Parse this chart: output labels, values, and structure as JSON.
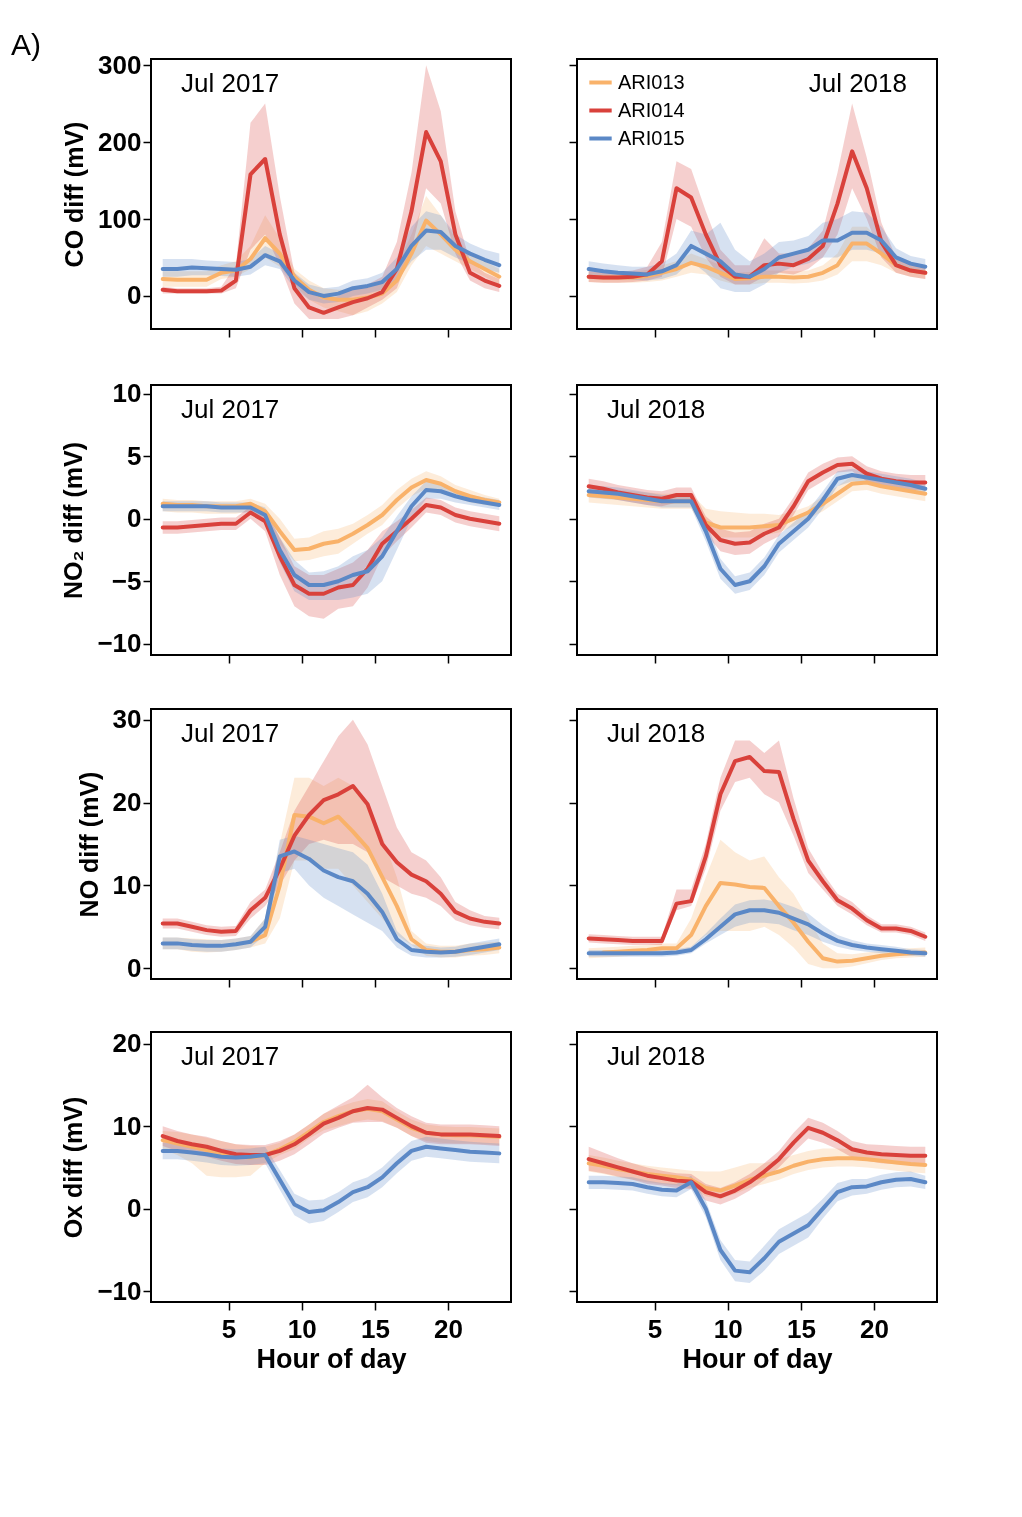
{
  "chart_data": [
    {
      "type": "line",
      "title": "A)",
      "annotations": [
        "Jul 2017"
      ],
      "ylabel": "CO diff (mV)",
      "xlim": [
        -0.3,
        24.3
      ],
      "xticks": [
        5,
        10,
        15,
        20
      ],
      "ylim": [
        -43,
        308
      ],
      "yticks": [
        0,
        100,
        200,
        300
      ],
      "tick_labels": "y",
      "legend": false,
      "x": [
        0.5,
        1.5,
        2.5,
        3.5,
        4.5,
        5.5,
        6.5,
        7.5,
        8.5,
        9.5,
        10.5,
        11.5,
        12.5,
        13.5,
        14.5,
        15.5,
        16.5,
        17.5,
        18.5,
        19.5,
        20.5,
        21.5,
        22.5,
        23.5
      ],
      "series": [
        {
          "color": "#f9b26a",
          "values": [
            22,
            21,
            21,
            21,
            30,
            33,
            48,
            75,
            55,
            25,
            8,
            -2,
            -5,
            -5,
            -2,
            3,
            20,
            55,
            98,
            80,
            60,
            45,
            35,
            25
          ],
          "lower": [
            12,
            12,
            12,
            12,
            22,
            25,
            35,
            50,
            38,
            15,
            -5,
            -15,
            -20,
            -25,
            -20,
            -10,
            5,
            40,
            65,
            55,
            45,
            35,
            25,
            15
          ],
          "upper": [
            32,
            32,
            32,
            32,
            40,
            45,
            65,
            105,
            75,
            35,
            20,
            10,
            8,
            8,
            12,
            18,
            40,
            80,
            130,
            105,
            75,
            55,
            45,
            35
          ]
        },
        {
          "color": "#d9413b",
          "values": [
            8,
            6,
            6,
            6,
            7,
            20,
            158,
            178,
            80,
            10,
            -15,
            -22,
            -15,
            -8,
            -3,
            5,
            35,
            110,
            213,
            175,
            80,
            30,
            20,
            13
          ],
          "lower": [
            3,
            3,
            3,
            3,
            3,
            10,
            60,
            80,
            40,
            -10,
            -30,
            -30,
            -30,
            -25,
            -15,
            -5,
            10,
            60,
            140,
            120,
            55,
            20,
            10,
            5
          ],
          "upper": [
            12,
            10,
            10,
            10,
            12,
            40,
            225,
            250,
            130,
            30,
            5,
            -5,
            0,
            10,
            15,
            25,
            70,
            160,
            300,
            240,
            110,
            45,
            30,
            22
          ]
        },
        {
          "color": "#5b88c6",
          "values": [
            35,
            35,
            37,
            36,
            35,
            34,
            38,
            53,
            45,
            20,
            5,
            0,
            3,
            10,
            13,
            18,
            35,
            65,
            85,
            83,
            65,
            55,
            47,
            40
          ],
          "lower": [
            25,
            25,
            27,
            27,
            26,
            25,
            28,
            40,
            35,
            10,
            -5,
            -10,
            -8,
            0,
            3,
            8,
            20,
            45,
            60,
            60,
            50,
            42,
            35,
            30
          ],
          "upper": [
            48,
            48,
            48,
            46,
            45,
            44,
            48,
            65,
            55,
            30,
            15,
            10,
            12,
            20,
            23,
            30,
            50,
            90,
            110,
            105,
            80,
            68,
            60,
            55
          ]
        }
      ]
    },
    {
      "type": "line",
      "annotations": [
        "Jul 2018"
      ],
      "xlim": [
        -0.3,
        24.3
      ],
      "xticks": [
        5,
        10,
        15,
        20
      ],
      "ylim": [
        -43,
        308
      ],
      "yticks": [
        0,
        100,
        200,
        300
      ],
      "tick_labels": false,
      "legend": "top left",
      "x": [
        0.5,
        1.5,
        2.5,
        3.5,
        4.5,
        5.5,
        6.5,
        7.5,
        8.5,
        9.5,
        10.5,
        11.5,
        12.5,
        13.5,
        14.5,
        15.5,
        16.5,
        17.5,
        18.5,
        19.5,
        20.5,
        21.5,
        22.5,
        23.5
      ],
      "series": [
        {
          "name": "ARI013",
          "color": "#f9b26a",
          "values": [
            25,
            24,
            24,
            24,
            26,
            30,
            35,
            43,
            38,
            30,
            22,
            23,
            25,
            25,
            24,
            25,
            30,
            40,
            68,
            68,
            55,
            40,
            33,
            30
          ],
          "lower": [
            18,
            17,
            17,
            17,
            18,
            20,
            25,
            30,
            28,
            20,
            15,
            15,
            17,
            17,
            16,
            17,
            20,
            28,
            45,
            45,
            40,
            30,
            25,
            22
          ],
          "upper": [
            32,
            31,
            31,
            31,
            34,
            40,
            45,
            55,
            48,
            40,
            30,
            31,
            33,
            33,
            32,
            33,
            40,
            55,
            90,
            90,
            70,
            50,
            41,
            38
          ]
        },
        {
          "name": "ARI014",
          "color": "#d9413b",
          "values": [
            25,
            24,
            24,
            25,
            28,
            45,
            140,
            128,
            80,
            40,
            25,
            25,
            40,
            42,
            40,
            48,
            65,
            120,
            188,
            140,
            70,
            40,
            33,
            30
          ],
          "lower": [
            18,
            17,
            17,
            18,
            20,
            25,
            100,
            90,
            50,
            25,
            15,
            15,
            25,
            30,
            28,
            35,
            50,
            80,
            140,
            100,
            50,
            30,
            25,
            22
          ],
          "upper": [
            32,
            31,
            31,
            33,
            38,
            70,
            175,
            165,
            110,
            60,
            40,
            40,
            75,
            55,
            55,
            62,
            85,
            160,
            250,
            180,
            95,
            50,
            42,
            38
          ]
        },
        {
          "name": "ARI015",
          "color": "#5b88c6",
          "values": [
            35,
            32,
            30,
            29,
            28,
            32,
            40,
            65,
            55,
            45,
            28,
            25,
            35,
            50,
            55,
            60,
            72,
            72,
            82,
            82,
            72,
            50,
            42,
            38
          ],
          "lower": [
            25,
            23,
            22,
            21,
            20,
            22,
            28,
            45,
            30,
            10,
            5,
            5,
            15,
            30,
            38,
            42,
            50,
            50,
            60,
            60,
            55,
            38,
            32,
            30
          ],
          "upper": [
            45,
            42,
            40,
            38,
            38,
            42,
            55,
            85,
            80,
            95,
            60,
            45,
            55,
            70,
            72,
            78,
            95,
            100,
            110,
            108,
            90,
            62,
            52,
            48
          ]
        }
      ]
    },
    {
      "type": "line",
      "annotations": [
        "Jul 2017"
      ],
      "ylabel": "NO₂ diff (mV)",
      "xlim": [
        -0.3,
        24.3
      ],
      "xticks": [
        5,
        10,
        15,
        20
      ],
      "ylim": [
        -10.9,
        10.7
      ],
      "yticks": [
        -10,
        -5,
        0,
        5,
        10
      ],
      "tick_labels": "y",
      "legend": false,
      "x": [
        0.5,
        1.5,
        2.5,
        3.5,
        4.5,
        5.5,
        6.5,
        7.5,
        8.5,
        9.5,
        10.5,
        11.5,
        12.5,
        13.5,
        14.5,
        15.5,
        16.5,
        17.5,
        18.5,
        19.5,
        20.5,
        21.5,
        22.5,
        23.5
      ],
      "series": [
        {
          "color": "#f9b26a",
          "values": [
            1.2,
            1.1,
            1.1,
            1.0,
            1.0,
            1.0,
            1.2,
            0.6,
            -1.0,
            -2.5,
            -2.4,
            -2.0,
            -1.8,
            -1.2,
            -0.5,
            0.3,
            1.5,
            2.5,
            3.1,
            2.8,
            2.2,
            1.8,
            1.5,
            1.3
          ],
          "lower": [
            0.6,
            0.5,
            0.5,
            0.4,
            0.4,
            0.4,
            0.6,
            0,
            -2,
            -3.4,
            -3.3,
            -3,
            -2.8,
            -2,
            -1.2,
            -0.5,
            0.8,
            1.8,
            2.4,
            2.2,
            1.7,
            1.3,
            1.1,
            1.0
          ],
          "upper": [
            1.6,
            1.5,
            1.5,
            1.4,
            1.4,
            1.4,
            1.6,
            1.2,
            0,
            -1.6,
            -1.5,
            -1,
            -0.8,
            -0.4,
            0.3,
            1.1,
            2.3,
            3.2,
            3.8,
            3.4,
            2.7,
            2.3,
            1.9,
            1.6
          ]
        },
        {
          "color": "#d9413b",
          "values": [
            -0.7,
            -0.7,
            -0.6,
            -0.5,
            -0.4,
            -0.4,
            0.5,
            -0.2,
            -3.0,
            -5.3,
            -6.0,
            -6.0,
            -5.5,
            -5.3,
            -4.0,
            -2.0,
            -1.0,
            0.0,
            1.1,
            0.9,
            0.3,
            0,
            -0.2,
            -0.4
          ],
          "lower": [
            -1.2,
            -1.2,
            -1.1,
            -1.0,
            -0.9,
            -0.9,
            0,
            -1,
            -4.5,
            -7,
            -7.8,
            -8,
            -7.2,
            -7.0,
            -5.5,
            -3,
            -1.8,
            -0.7,
            0.5,
            0.3,
            -0.3,
            -0.6,
            -0.8,
            -1.0
          ],
          "upper": [
            -0.2,
            -0.2,
            -0.1,
            0,
            0.1,
            0.1,
            1,
            0.6,
            -1.5,
            -3.8,
            -4.5,
            -4.5,
            -4,
            -3.5,
            -2.5,
            -1,
            -0.2,
            0.7,
            1.7,
            1.5,
            0.9,
            0.6,
            0.4,
            0.2
          ]
        },
        {
          "color": "#5b88c6",
          "values": [
            1.0,
            1.0,
            1.0,
            1.0,
            0.9,
            0.9,
            0.9,
            0.3,
            -2.5,
            -4.5,
            -5.3,
            -5.3,
            -5.0,
            -4.5,
            -4.2,
            -3.0,
            -1.0,
            1.0,
            2.3,
            2.2,
            1.8,
            1.5,
            1.3,
            1.1
          ],
          "lower": [
            0.6,
            0.6,
            0.6,
            0.6,
            0.5,
            0.5,
            0.5,
            -0.3,
            -3.5,
            -5.8,
            -6.5,
            -6.5,
            -6.5,
            -6.3,
            -6.0,
            -5.0,
            -2.5,
            0,
            1.6,
            1.6,
            1.3,
            1.1,
            0.9,
            0.7
          ],
          "upper": [
            1.4,
            1.4,
            1.4,
            1.4,
            1.3,
            1.3,
            1.3,
            0.9,
            -1.5,
            -3.3,
            -4.3,
            -4.2,
            -3.8,
            -3.0,
            -2.5,
            -1.5,
            0.2,
            1.8,
            3.0,
            2.8,
            2.3,
            1.9,
            1.7,
            1.5
          ]
        }
      ]
    },
    {
      "type": "line",
      "annotations": [
        "Jul 2018"
      ],
      "xlim": [
        -0.3,
        24.3
      ],
      "xticks": [
        5,
        10,
        15,
        20
      ],
      "ylim": [
        -10.9,
        10.7
      ],
      "yticks": [
        -10,
        -5,
        0,
        5,
        10
      ],
      "tick_labels": false,
      "legend": false,
      "x": [
        0.5,
        1.5,
        2.5,
        3.5,
        4.5,
        5.5,
        6.5,
        7.5,
        8.5,
        9.5,
        10.5,
        11.5,
        12.5,
        13.5,
        14.5,
        15.5,
        16.5,
        17.5,
        18.5,
        19.5,
        20.5,
        21.5,
        22.5,
        23.5
      ],
      "series": [
        {
          "color": "#f9b26a",
          "values": [
            1.9,
            1.8,
            1.7,
            1.6,
            1.5,
            1.4,
            1.4,
            1.4,
            -0.3,
            -0.7,
            -0.7,
            -0.7,
            -0.6,
            -0.5,
            0.0,
            0.5,
            1.2,
            2.0,
            2.8,
            2.9,
            2.6,
            2.4,
            2.2,
            2.0
          ],
          "lower": [
            1.3,
            1.2,
            1.1,
            1.0,
            0.9,
            0.8,
            0.8,
            0.8,
            -1.0,
            -1.5,
            -1.5,
            -1.5,
            -1.3,
            -1.1,
            -0.6,
            0,
            0.6,
            1.4,
            2.2,
            2.3,
            2.0,
            1.8,
            1.6,
            1.4
          ],
          "upper": [
            2.5,
            2.4,
            2.3,
            2.2,
            2.1,
            2.0,
            2.0,
            2.0,
            0.8,
            0.6,
            0.5,
            0.4,
            0.4,
            0.3,
            0.6,
            1.0,
            1.8,
            2.6,
            3.4,
            3.5,
            3.2,
            3.0,
            2.8,
            2.6
          ]
        },
        {
          "color": "#d9413b",
          "values": [
            2.6,
            2.4,
            2.1,
            1.9,
            1.7,
            1.6,
            1.9,
            1.9,
            -0.5,
            -1.7,
            -2.0,
            -1.9,
            -1.2,
            -0.7,
            1.0,
            3.0,
            3.7,
            4.3,
            4.4,
            3.6,
            3.2,
            3.0,
            2.9,
            2.9
          ],
          "lower": [
            2.0,
            1.8,
            1.5,
            1.3,
            1.1,
            1.0,
            1.3,
            1.3,
            -1.2,
            -2.6,
            -2.9,
            -2.8,
            -2.0,
            -1.4,
            0.3,
            2.3,
            3.0,
            3.7,
            3.8,
            3.0,
            2.6,
            2.4,
            2.3,
            2.3
          ],
          "upper": [
            3.2,
            3.0,
            2.7,
            2.5,
            2.3,
            2.2,
            2.5,
            2.5,
            0.2,
            -0.8,
            -1.1,
            -1.0,
            -0.4,
            0,
            1.7,
            3.7,
            4.4,
            4.9,
            5.0,
            4.2,
            3.8,
            3.6,
            3.5,
            3.5
          ]
        },
        {
          "color": "#5b88c6",
          "values": [
            2.2,
            2.1,
            2.0,
            1.8,
            1.6,
            1.4,
            1.4,
            1.4,
            -1.0,
            -4.0,
            -5.3,
            -5.0,
            -3.8,
            -2.0,
            -1.0,
            0.0,
            1.5,
            3.2,
            3.5,
            3.3,
            3.1,
            2.9,
            2.7,
            2.4
          ],
          "lower": [
            1.7,
            1.6,
            1.5,
            1.3,
            1.1,
            0.9,
            0.9,
            0.9,
            -1.8,
            -4.8,
            -6.0,
            -5.7,
            -4.5,
            -2.7,
            -1.7,
            -0.7,
            0.8,
            2.6,
            3.0,
            2.8,
            2.6,
            2.4,
            2.2,
            1.9
          ],
          "upper": [
            2.7,
            2.6,
            2.5,
            2.3,
            2.1,
            1.9,
            1.9,
            1.9,
            -0.2,
            -3.2,
            -4.6,
            -4.3,
            -3.1,
            -1.3,
            -0.3,
            0.7,
            2.2,
            3.8,
            4.0,
            3.8,
            3.6,
            3.4,
            3.2,
            2.9
          ]
        }
      ]
    },
    {
      "type": "line",
      "annotations": [
        "Jul 2017"
      ],
      "ylabel": "NO diff (mV)",
      "xlim": [
        -0.3,
        24.3
      ],
      "xticks": [
        5,
        10,
        15,
        20
      ],
      "ylim": [
        -1.3,
        31.3
      ],
      "yticks": [
        0,
        10,
        20,
        30
      ],
      "tick_labels": "y",
      "legend": false,
      "x": [
        0.5,
        1.5,
        2.5,
        3.5,
        4.5,
        5.5,
        6.5,
        7.5,
        8.5,
        9.5,
        10.5,
        11.5,
        12.5,
        13.5,
        14.5,
        15.5,
        16.5,
        17.5,
        18.5,
        19.5,
        20.5,
        21.5,
        22.5,
        23.5
      ],
      "series": [
        {
          "color": "#f9b26a",
          "values": [
            null,
            null,
            null,
            null,
            null,
            null,
            3.2,
            4.0,
            10,
            18.5,
            18.3,
            17.5,
            18.3,
            16.5,
            14.5,
            11,
            7.5,
            3.5,
            2.2,
            2.0,
            2.0,
            2.2,
            2.3,
            2.5
          ],
          "lower": [
            2.3,
            2.3,
            2.0,
            1.9,
            2.0,
            2.2,
            2.5,
            3,
            6,
            13,
            13,
            12,
            12,
            10,
            8,
            6,
            4,
            2.8,
            1.5,
            1.3,
            1.3,
            1.5,
            1.6,
            1.8
          ],
          "upper": [
            3.7,
            3.7,
            3.6,
            3.5,
            3.4,
            3.6,
            3.9,
            6,
            15,
            23,
            23,
            22,
            23,
            22,
            20,
            16,
            11,
            4.5,
            3,
            2.7,
            2.7,
            3,
            3.1,
            3.2
          ]
        },
        {
          "color": "#d9413b",
          "values": [
            5.4,
            5.4,
            5.0,
            4.6,
            4.4,
            4.5,
            7.0,
            8.5,
            12,
            16.0,
            18.5,
            20.3,
            21.0,
            22.0,
            19.8,
            15,
            12.8,
            11.3,
            10.5,
            9.0,
            6.8,
            6.0,
            5.6,
            5.4
          ],
          "lower": [
            4.8,
            4.8,
            4.4,
            4.0,
            3.8,
            3.9,
            6,
            7.5,
            10,
            13,
            15,
            15.5,
            15,
            15,
            14,
            11,
            10,
            9,
            8.5,
            7.5,
            5.8,
            5.2,
            4.9,
            4.7
          ],
          "upper": [
            6,
            6,
            5.6,
            5.2,
            5,
            5.1,
            8,
            9.5,
            14,
            19,
            22,
            25,
            28,
            30,
            27,
            22,
            17,
            14,
            13,
            11,
            8,
            7,
            6.3,
            6.1
          ]
        },
        {
          "color": "#5b88c6",
          "values": [
            3.0,
            3.0,
            2.8,
            2.7,
            2.7,
            2.9,
            3.2,
            5,
            13.5,
            14.1,
            13.2,
            11.8,
            11,
            10.5,
            9.0,
            6.8,
            3.5,
            2.2,
            2.0,
            1.9,
            2.0,
            2.3,
            2.6,
            2.9
          ],
          "lower": [
            2.3,
            2.3,
            2.1,
            2.0,
            2.0,
            2.2,
            2.5,
            4,
            11.5,
            12,
            10,
            8.5,
            7.5,
            6.5,
            5.5,
            4.5,
            2.5,
            1.5,
            1.3,
            1.3,
            1.4,
            1.6,
            1.9,
            2.2
          ],
          "upper": [
            3.7,
            3.7,
            3.5,
            3.4,
            3.4,
            3.6,
            3.9,
            6,
            15.5,
            16,
            15.5,
            15,
            14.5,
            14,
            12.5,
            9,
            4.5,
            2.9,
            2.7,
            2.5,
            2.6,
            3.0,
            3.3,
            3.6
          ]
        }
      ]
    },
    {
      "type": "line",
      "annotations": [
        "Jul 2018"
      ],
      "xlim": [
        -0.3,
        24.3
      ],
      "xticks": [
        5,
        10,
        15,
        20
      ],
      "ylim": [
        -1.3,
        31.3
      ],
      "yticks": [
        0,
        10,
        20,
        30
      ],
      "tick_labels": false,
      "legend": false,
      "x": [
        0.5,
        1.5,
        2.5,
        3.5,
        4.5,
        5.5,
        6.5,
        7.5,
        8.5,
        9.5,
        10.5,
        11.5,
        12.5,
        13.5,
        14.5,
        15.5,
        16.5,
        17.5,
        18.5,
        19.5,
        20.5,
        21.5,
        22.5,
        23.5
      ],
      "series": [
        {
          "color": "#f9b26a",
          "values": [
            null,
            1.9,
            2.0,
            2.1,
            2.2,
            2.4,
            2.4,
            4,
            7.5,
            10.3,
            10.1,
            9.8,
            9.7,
            7.5,
            5.5,
            3.2,
            1.2,
            0.8,
            0.9,
            1.2,
            1.5,
            1.7,
            1.8,
            1.9
          ],
          "lower": [
            1.2,
            1.3,
            1.4,
            1.5,
            1.6,
            1.8,
            1.8,
            2.5,
            4,
            4.5,
            4.5,
            4.5,
            5,
            4,
            2.5,
            0.5,
            0,
            0,
            0.2,
            0.6,
            1,
            1.2,
            1.3,
            1.4
          ],
          "upper": [
            2.4,
            2.5,
            2.6,
            2.7,
            2.8,
            3,
            3,
            6,
            11,
            15.5,
            14,
            13,
            13.5,
            11,
            9,
            6,
            3,
            1.8,
            1.7,
            1.9,
            2.1,
            2.3,
            2.4,
            2.5
          ]
        },
        {
          "color": "#d9413b",
          "values": [
            3.6,
            3.5,
            3.4,
            3.3,
            3.3,
            3.3,
            7.8,
            8.1,
            13.5,
            21,
            25,
            25.5,
            23.8,
            23.7,
            18,
            13,
            10.5,
            8.2,
            7.2,
            5.8,
            4.8,
            4.8,
            4.5,
            3.8
          ],
          "lower": [
            3.1,
            3.0,
            2.9,
            2.8,
            2.8,
            2.8,
            7,
            7.5,
            12,
            19,
            22.5,
            23,
            21,
            20,
            16,
            11.5,
            9.5,
            7.5,
            6.5,
            5.2,
            4.3,
            4.3,
            4.0,
            3.3
          ],
          "upper": [
            4.1,
            4.0,
            3.9,
            3.8,
            3.8,
            3.8,
            9.5,
            9.5,
            15,
            23,
            27.5,
            27.5,
            26,
            27.5,
            20.5,
            14.5,
            11.5,
            9,
            8,
            6.4,
            5.3,
            5.3,
            5,
            4.3
          ]
        },
        {
          "color": "#5b88c6",
          "values": [
            1.8,
            1.8,
            1.8,
            1.8,
            1.8,
            1.8,
            1.9,
            2.2,
            3.5,
            5.0,
            6.5,
            7.0,
            7.0,
            6.7,
            6.0,
            5.3,
            4.2,
            3.3,
            2.8,
            2.5,
            2.3,
            2.1,
            1.9,
            1.8
          ],
          "lower": [
            1.4,
            1.4,
            1.4,
            1.4,
            1.4,
            1.4,
            1.5,
            1.8,
            3,
            4,
            5,
            5.5,
            5.5,
            5.3,
            4.6,
            4,
            3.2,
            2.6,
            2.2,
            2,
            1.8,
            1.6,
            1.5,
            1.4
          ],
          "upper": [
            2.2,
            2.2,
            2.2,
            2.2,
            2.2,
            2.2,
            2.3,
            2.6,
            4.2,
            6,
            7.7,
            8.2,
            8.3,
            8.0,
            7.4,
            6.6,
            5.2,
            4,
            3.4,
            3,
            2.8,
            2.6,
            2.3,
            2.2
          ]
        }
      ]
    },
    {
      "type": "line",
      "annotations": [
        "Jul 2017"
      ],
      "ylabel": "Ox diff (mV)",
      "xlabel": "Hour of day",
      "xlim": [
        -0.3,
        24.3
      ],
      "xticks": [
        5,
        10,
        15,
        20
      ],
      "ylim": [
        -11.3,
        21.4
      ],
      "yticks": [
        -10,
        0,
        10,
        20
      ],
      "legend": false,
      "x": [
        0.5,
        1.5,
        2.5,
        3.5,
        4.5,
        5.5,
        6.5,
        7.5,
        8.5,
        9.5,
        10.5,
        11.5,
        12.5,
        13.5,
        14.5,
        15.5,
        16.5,
        17.5,
        18.5,
        19.5,
        20.5,
        21.5,
        22.5,
        23.5
      ],
      "series": [
        {
          "color": "#f9b26a",
          "values": [
            8.3,
            7.9,
            7.5,
            7.1,
            6.7,
            6.4,
            6.2,
            6.5,
            7.2,
            8.1,
            9.3,
            10.5,
            11.2,
            11.8,
            12.1,
            11.8,
            10.8,
            9.8,
            9.2,
            9.0,
            8.9,
            8.9,
            8.8,
            8.7
          ],
          "lower": [
            7.2,
            6.5,
            5.5,
            4.0,
            3.8,
            3.8,
            4.0,
            5.5,
            6.5,
            7.2,
            8.5,
            9.5,
            10.0,
            10.5,
            10.8,
            10.6,
            9.8,
            8.8,
            8.2,
            8.0,
            7.9,
            7.9,
            7.8,
            7.7
          ],
          "upper": [
            9.4,
            9.3,
            9.0,
            8.6,
            8.2,
            7.8,
            7.6,
            7.5,
            8.0,
            9.0,
            10.2,
            11.5,
            12.3,
            12.9,
            13.3,
            13,
            11.8,
            10.8,
            10.2,
            10,
            9.9,
            9.9,
            9.8,
            9.7
          ]
        },
        {
          "color": "#d9413b",
          "values": [
            8.8,
            8.2,
            7.8,
            7.5,
            7.0,
            6.6,
            6.5,
            6.5,
            7.0,
            7.8,
            9.0,
            10.3,
            11.0,
            11.8,
            12.2,
            12.0,
            11.0,
            10.0,
            9.2,
            9.0,
            9.0,
            9.0,
            8.9,
            8.8
          ],
          "lower": [
            7.6,
            7.0,
            6.6,
            6.3,
            5.8,
            5.4,
            5.3,
            5.3,
            5.8,
            6.6,
            7.8,
            9.1,
            9.8,
            10.4,
            10.5,
            10.5,
            9.8,
            8.8,
            8.0,
            7.8,
            7.8,
            7.8,
            7.7,
            7.6
          ],
          "upper": [
            10,
            9.4,
            9.0,
            8.7,
            8.2,
            7.8,
            7.7,
            7.7,
            8.2,
            9.0,
            10.2,
            11.5,
            12.5,
            13.5,
            15,
            13.5,
            12.2,
            11.2,
            10.4,
            10.2,
            10.2,
            10.2,
            10.1,
            10
          ]
        },
        {
          "color": "#5b88c6",
          "values": [
            7.0,
            7.0,
            6.8,
            6.6,
            6.3,
            6.2,
            6.3,
            6.5,
            3.5,
            0.5,
            -0.4,
            -0.2,
            0.8,
            2.0,
            2.6,
            3.8,
            5.5,
            7.0,
            7.5,
            7.3,
            7.1,
            6.9,
            6.8,
            6.7
          ],
          "lower": [
            6.0,
            6.0,
            5.8,
            5.6,
            5.3,
            5.2,
            5.3,
            5.5,
            2.3,
            -0.8,
            -1.8,
            -1.5,
            -0.4,
            0.8,
            1.4,
            2.6,
            4.3,
            5.8,
            6.3,
            6.1,
            5.9,
            5.7,
            5.6,
            5.5
          ],
          "upper": [
            8,
            8,
            7.8,
            7.6,
            7.3,
            7.2,
            7.3,
            7.5,
            4.7,
            1.8,
            1.0,
            1.1,
            2.0,
            3.2,
            3.8,
            5.0,
            6.7,
            8.2,
            8.7,
            8.5,
            8.3,
            8.1,
            8,
            7.9
          ]
        }
      ]
    },
    {
      "type": "line",
      "annotations": [
        "Jul 2018"
      ],
      "xlabel": "Hour of day",
      "xlim": [
        -0.3,
        24.3
      ],
      "xticks": [
        5,
        10,
        15,
        20
      ],
      "ylim": [
        -11.3,
        21.4
      ],
      "yticks": [
        -10,
        0,
        10,
        20
      ],
      "tick_labels": "x",
      "legend": false,
      "x": [
        0.5,
        1.5,
        2.5,
        3.5,
        4.5,
        5.5,
        6.5,
        7.5,
        8.5,
        9.5,
        10.5,
        11.5,
        12.5,
        13.5,
        14.5,
        15.5,
        16.5,
        17.5,
        18.5,
        19.5,
        20.5,
        21.5,
        22.5,
        23.5
      ],
      "series": [
        {
          "color": "#f9b26a",
          "values": [
            5.5,
            5.2,
            4.8,
            4.5,
            4.2,
            4.0,
            3.8,
            3.5,
            2.5,
            2.2,
            2.8,
            3.5,
            4.0,
            4.5,
            5.2,
            5.7,
            6.0,
            6.1,
            6.1,
            6.0,
            5.8,
            5.6,
            5.4,
            5.3
          ],
          "lower": [
            4.5,
            4.2,
            3.8,
            3.5,
            3.2,
            3.0,
            2.8,
            2.5,
            1.5,
            1.2,
            1.8,
            2.5,
            3.0,
            3.5,
            4.2,
            4.7,
            5.0,
            5.1,
            5.1,
            5.0,
            4.8,
            4.6,
            4.4,
            4.3
          ],
          "upper": [
            6.5,
            6.2,
            5.8,
            5.5,
            5.2,
            5.0,
            4.8,
            4.6,
            4.5,
            4.5,
            5.0,
            5.5,
            5.5,
            6.0,
            6.5,
            7.0,
            7.3,
            7.3,
            7.2,
            7.0,
            6.8,
            6.6,
            6.4,
            6.3
          ]
        },
        {
          "color": "#d9413b",
          "values": [
            6.0,
            5.5,
            5.0,
            4.5,
            4.0,
            3.7,
            3.4,
            3.3,
            2.0,
            1.5,
            2.2,
            3.2,
            4.5,
            6.0,
            8.0,
            9.8,
            9.2,
            8.3,
            7.2,
            6.8,
            6.6,
            6.5,
            6.4,
            6.4
          ],
          "lower": [
            4.6,
            4.3,
            3.9,
            3.5,
            3.0,
            2.8,
            2.5,
            2.4,
            1.0,
            0.5,
            1.2,
            2.2,
            3.5,
            5.0,
            6.8,
            8.5,
            8.0,
            7.2,
            6.2,
            5.8,
            5.5,
            5.4,
            5.3,
            5.3
          ],
          "upper": [
            7.5,
            6.8,
            6.1,
            5.5,
            5.0,
            4.6,
            4.3,
            4.2,
            3.0,
            2.5,
            3.2,
            4.2,
            5.5,
            7.0,
            9.2,
            11,
            10.4,
            9.4,
            8.2,
            7.8,
            7.7,
            7.6,
            7.5,
            7.5
          ]
        },
        {
          "color": "#5b88c6",
          "values": [
            3.2,
            3.2,
            3.1,
            3.0,
            2.6,
            2.3,
            2.2,
            3.2,
            0,
            -5.0,
            -7.5,
            -7.7,
            -6.0,
            -4.0,
            -3.0,
            -2.0,
            0,
            2.0,
            2.6,
            2.7,
            3.2,
            3.5,
            3.6,
            3.2
          ],
          "lower": [
            2.4,
            2.4,
            2.3,
            2.2,
            1.8,
            1.5,
            1.4,
            2.4,
            -1.0,
            -6.2,
            -8.8,
            -9.0,
            -7.5,
            -5.5,
            -4.5,
            -3.5,
            -1.2,
            0.9,
            1.6,
            1.8,
            2.3,
            2.6,
            2.7,
            2.4
          ],
          "upper": [
            4.0,
            4.0,
            3.9,
            3.8,
            3.4,
            3.1,
            3.0,
            4.0,
            1.0,
            -3.8,
            -6.2,
            -6.4,
            -4.5,
            -2.5,
            -1.5,
            -0.5,
            1.2,
            3.1,
            3.6,
            3.6,
            4.1,
            4.4,
            4.5,
            4.0
          ]
        }
      ]
    }
  ]
}
